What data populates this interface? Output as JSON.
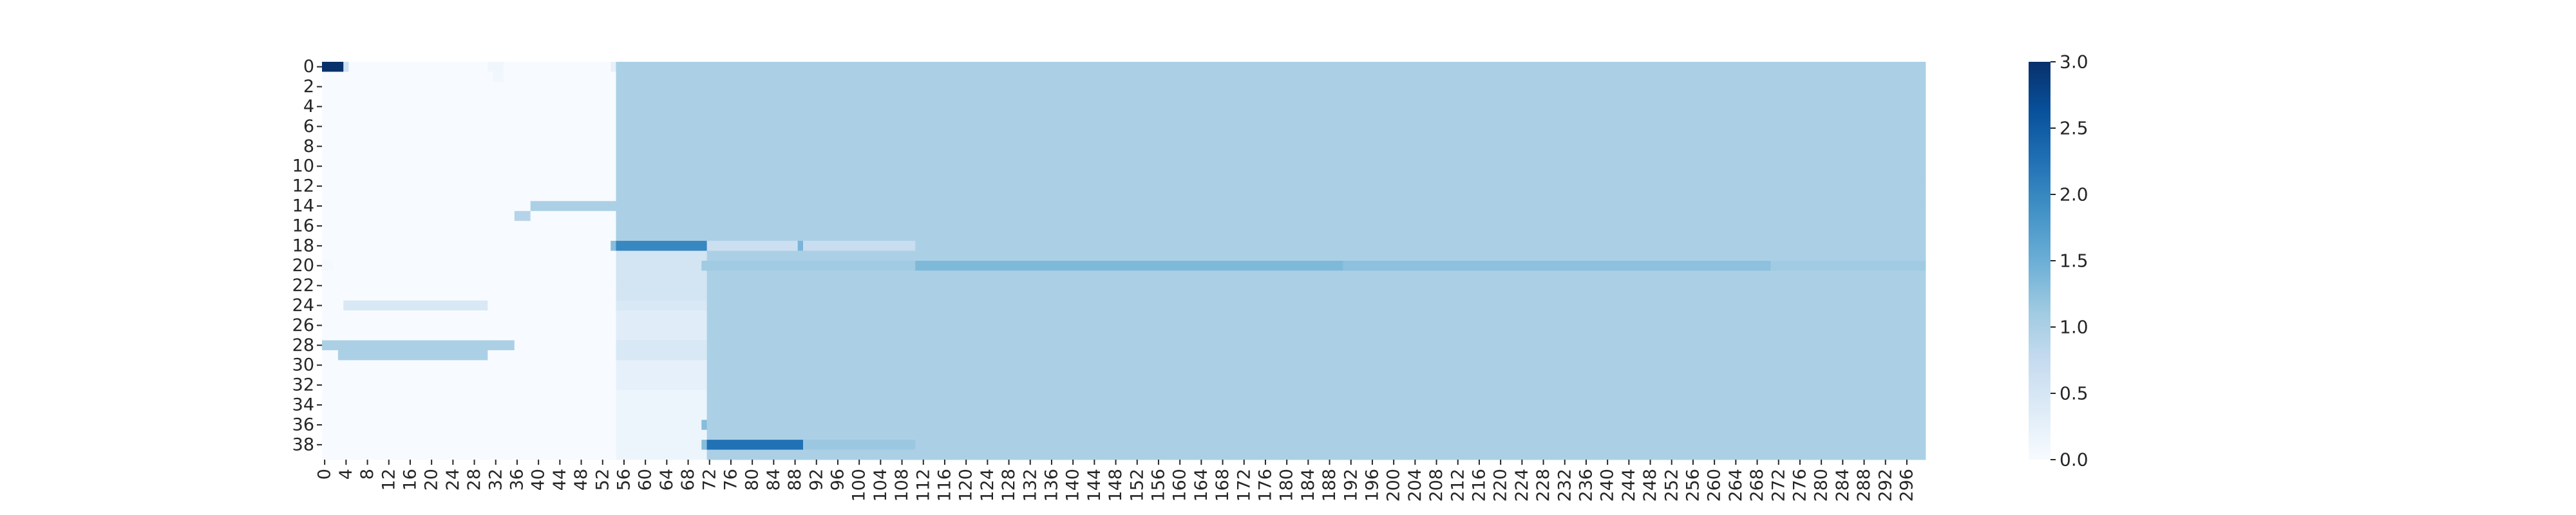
{
  "chart_data": {
    "type": "heatmap",
    "title": "",
    "xlabel": "",
    "ylabel": "",
    "rows": 40,
    "cols": 300,
    "x_tick_labels": [
      "0",
      "4",
      "8",
      "12",
      "16",
      "20",
      "24",
      "28",
      "32",
      "36",
      "40",
      "44",
      "48",
      "52",
      "56",
      "60",
      "64",
      "68",
      "72",
      "76",
      "80",
      "84",
      "88",
      "92",
      "96",
      "100",
      "104",
      "108",
      "112",
      "116",
      "120",
      "124",
      "128",
      "132",
      "136",
      "140",
      "144",
      "148",
      "152",
      "156",
      "160",
      "164",
      "168",
      "172",
      "176",
      "180",
      "184",
      "188",
      "192",
      "196",
      "200",
      "204",
      "208",
      "212",
      "216",
      "220",
      "224",
      "228",
      "232",
      "236",
      "240",
      "244",
      "248",
      "252",
      "256",
      "260",
      "264",
      "268",
      "272",
      "276",
      "280",
      "284",
      "288",
      "292",
      "296"
    ],
    "y_tick_labels": [
      "0",
      "2",
      "4",
      "6",
      "8",
      "10",
      "12",
      "14",
      "16",
      "18",
      "20",
      "22",
      "24",
      "26",
      "28",
      "30",
      "32",
      "34",
      "36",
      "38"
    ],
    "value_range": [
      0,
      3.0
    ],
    "colorbar": {
      "ticks": [
        "0.0",
        "0.5",
        "1.0",
        "1.5",
        "2.0",
        "2.5",
        "3.0"
      ],
      "colormap": "Blues"
    },
    "background_value": 1.0,
    "regions": [
      {
        "rows": [
          0,
          39
        ],
        "cols": [
          0,
          54
        ],
        "value": 0.0
      },
      {
        "rows": [
          0,
          0
        ],
        "cols": [
          0,
          3
        ],
        "value": 3.0
      },
      {
        "rows": [
          0,
          0
        ],
        "cols": [
          4,
          4
        ],
        "value": 0.6
      },
      {
        "rows": [
          0,
          0
        ],
        "cols": [
          31,
          33
        ],
        "value": 0.12
      },
      {
        "rows": [
          1,
          1
        ],
        "cols": [
          32,
          33
        ],
        "value": 0.1
      },
      {
        "rows": [
          0,
          0
        ],
        "cols": [
          54,
          54
        ],
        "value": 0.25
      },
      {
        "rows": [
          14,
          14
        ],
        "cols": [
          39,
          54
        ],
        "value": 1.0
      },
      {
        "rows": [
          15,
          15
        ],
        "cols": [
          36,
          38
        ],
        "value": 0.9
      },
      {
        "rows": [
          18,
          18
        ],
        "cols": [
          54,
          54
        ],
        "value": 1.3
      },
      {
        "rows": [
          18,
          18
        ],
        "cols": [
          55,
          71
        ],
        "value": 2.0
      },
      {
        "rows": [
          18,
          18
        ],
        "cols": [
          72,
          89
        ],
        "value": 0.65
      },
      {
        "rows": [
          18,
          18
        ],
        "cols": [
          89,
          89
        ],
        "value": 1.4
      },
      {
        "rows": [
          18,
          18
        ],
        "cols": [
          90,
          110
        ],
        "value": 0.7
      },
      {
        "rows": [
          19,
          23
        ],
        "cols": [
          55,
          71
        ],
        "value": 0.55
      },
      {
        "rows": [
          24,
          24
        ],
        "cols": [
          55,
          71
        ],
        "value": 0.45
      },
      {
        "rows": [
          25,
          27
        ],
        "cols": [
          55,
          71
        ],
        "value": 0.35
      },
      {
        "rows": [
          28,
          29
        ],
        "cols": [
          55,
          71
        ],
        "value": 0.45
      },
      {
        "rows": [
          30,
          32
        ],
        "cols": [
          55,
          71
        ],
        "value": 0.25
      },
      {
        "rows": [
          33,
          39
        ],
        "cols": [
          55,
          71
        ],
        "value": 0.15
      },
      {
        "rows": [
          20,
          20
        ],
        "cols": [
          0,
          1
        ],
        "value": 0.05
      },
      {
        "rows": [
          20,
          20
        ],
        "cols": [
          71,
          110
        ],
        "value": 1.1
      },
      {
        "rows": [
          20,
          20
        ],
        "cols": [
          111,
          190
        ],
        "value": 1.35
      },
      {
        "rows": [
          20,
          20
        ],
        "cols": [
          191,
          270
        ],
        "value": 1.25
      },
      {
        "rows": [
          20,
          20
        ],
        "cols": [
          271,
          299
        ],
        "value": 1.1
      },
      {
        "rows": [
          24,
          24
        ],
        "cols": [
          4,
          30
        ],
        "value": 0.45
      },
      {
        "rows": [
          28,
          28
        ],
        "cols": [
          0,
          35
        ],
        "value": 1.0
      },
      {
        "rows": [
          29,
          29
        ],
        "cols": [
          3,
          30
        ],
        "value": 1.0
      },
      {
        "rows": [
          36,
          36
        ],
        "cols": [
          71,
          71
        ],
        "value": 1.3
      },
      {
        "rows": [
          38,
          38
        ],
        "cols": [
          71,
          71
        ],
        "value": 1.3
      },
      {
        "rows": [
          38,
          38
        ],
        "cols": [
          72,
          89
        ],
        "value": 2.25
      },
      {
        "rows": [
          38,
          38
        ],
        "cols": [
          90,
          110
        ],
        "value": 1.15
      }
    ]
  }
}
